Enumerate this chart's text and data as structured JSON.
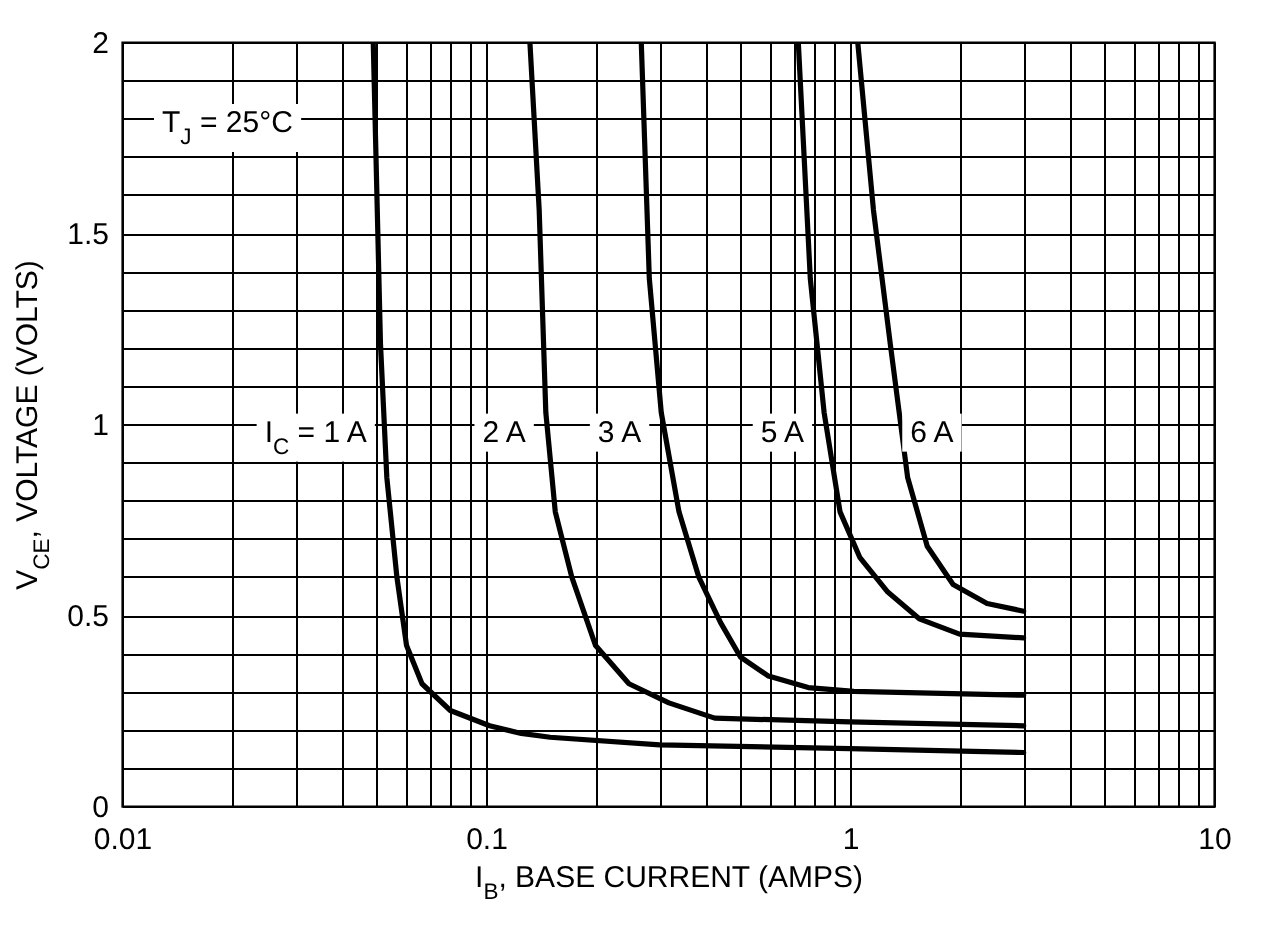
{
  "chart_data": {
    "type": "line",
    "xlabel": "I$_{B}$, BASE CURRENT (AMPS)",
    "ylabel": "V$_{CE}$, VOLTAGE (VOLTS)",
    "log": "x",
    "grid": true,
    "marker": "none",
    "line_style": "solid",
    "xlim": [
      0.01,
      10
    ],
    "ylim": [
      0,
      2
    ],
    "xticks": [
      0.01,
      {
        "value": 0.02,
        "label": null
      },
      {
        "value": 0.03,
        "label": null
      },
      {
        "value": 0.04,
        "label": null
      },
      {
        "value": 0.05,
        "label": null
      },
      {
        "value": 0.06,
        "label": null
      },
      {
        "value": 0.07,
        "label": null
      },
      {
        "value": 0.08,
        "label": null
      },
      {
        "value": 0.09,
        "label": null
      },
      0.1,
      {
        "value": 0.2,
        "label": null
      },
      {
        "value": 0.3,
        "label": null
      },
      {
        "value": 0.4,
        "label": null
      },
      {
        "value": 0.5,
        "label": null
      },
      {
        "value": 0.6,
        "label": null
      },
      {
        "value": 0.7,
        "label": null
      },
      {
        "value": 0.8,
        "label": null
      },
      {
        "value": 0.9,
        "label": null
      },
      1,
      {
        "value": 2,
        "label": null
      },
      {
        "value": 3,
        "label": null
      },
      {
        "value": 4,
        "label": null
      },
      {
        "value": 5,
        "label": null
      },
      {
        "value": 6,
        "label": null
      },
      {
        "value": 7,
        "label": null
      },
      {
        "value": 8,
        "label": null
      },
      {
        "value": 9,
        "label": null
      },
      10
    ],
    "yticks": [
      0,
      {
        "value": 0.1,
        "label": null
      },
      {
        "value": 0.2,
        "label": null
      },
      {
        "value": 0.3,
        "label": null
      },
      {
        "value": 0.4,
        "label": null
      },
      0.5,
      {
        "value": 0.6,
        "label": null
      },
      {
        "value": 0.7,
        "label": null
      },
      {
        "value": 0.8,
        "label": null
      },
      {
        "value": 0.9,
        "label": null
      },
      1,
      {
        "value": 1.1,
        "label": null
      },
      {
        "value": 1.2,
        "label": null
      },
      {
        "value": 1.3,
        "label": null
      },
      {
        "value": 1.4,
        "label": null
      },
      1.5,
      {
        "value": 1.6,
        "label": null
      },
      {
        "value": 1.7,
        "label": null
      },
      {
        "value": 1.8,
        "label": null
      },
      {
        "value": 1.9,
        "label": null
      },
      2
    ],
    "series": [
      {
        "name": "I$_{C}$ = 1 A",
        "color": "#000000",
        "x": [
          0.049,
          0.0513,
          0.0534,
          0.0569,
          0.0605,
          0.0667,
          0.0798,
          0.1023,
          0.125,
          0.15,
          0.3,
          1,
          3
        ],
        "values": [
          2,
          1.21,
          0.86,
          0.6,
          0.42,
          0.32,
          0.25,
          0.21,
          0.19,
          0.18,
          0.16,
          0.15,
          0.14
        ]
      },
      {
        "name": "2 A",
        "color": "#000000",
        "x": [
          0.132,
          0.14,
          0.146,
          0.155,
          0.172,
          0.2,
          0.247,
          0.318,
          0.425,
          1,
          3
        ],
        "values": [
          2,
          1.56,
          1.03,
          0.77,
          0.6,
          0.42,
          0.32,
          0.27,
          0.23,
          0.22,
          0.21
        ]
      },
      {
        "name": "3 A",
        "color": "#000000",
        "x": [
          0.267,
          0.281,
          0.303,
          0.339,
          0.384,
          0.441,
          0.5,
          0.597,
          0.768,
          1.025,
          3
        ],
        "values": [
          2,
          1.38,
          1.03,
          0.77,
          0.6,
          0.48,
          0.39,
          0.34,
          0.31,
          0.3,
          0.29
        ]
      },
      {
        "name": "5 A",
        "color": "#000000",
        "x": [
          0.721,
          0.778,
          0.849,
          0.939,
          1.065,
          1.27,
          1.55,
          2,
          3
        ],
        "values": [
          2,
          1.38,
          1.03,
          0.77,
          0.65,
          0.56,
          0.49,
          0.45,
          0.44
        ]
      },
      {
        "name": "6 A",
        "color": "#000000",
        "x": [
          1.05,
          1.16,
          1.29,
          1.44,
          1.63,
          1.92,
          2.38,
          3
        ],
        "values": [
          2,
          1.56,
          1.21,
          0.86,
          0.68,
          0.58,
          0.53,
          0.51
        ]
      }
    ],
    "annotations": [
      "T$_{J}$ = 25°C"
    ]
  }
}
